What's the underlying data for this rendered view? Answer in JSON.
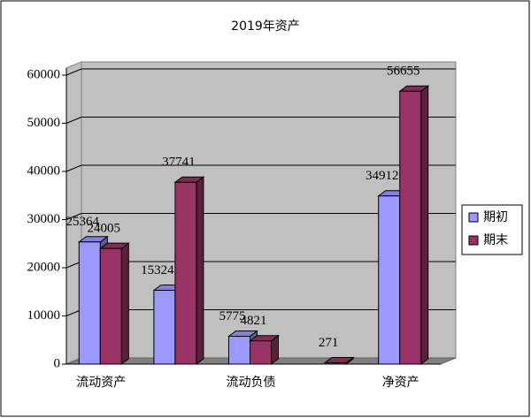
{
  "chart_data": {
    "type": "bar3d",
    "title": "2019年资产",
    "categories": [
      "流动资产",
      null,
      "流动负债",
      null,
      "净资产"
    ],
    "series": [
      {
        "name": "期初",
        "color": "#9999ff",
        "values": [
          25364,
          15324,
          5775,
          null,
          34912
        ]
      },
      {
        "name": "期末",
        "color": "#993366",
        "values": [
          24005,
          37741,
          4821,
          271,
          56655
        ]
      }
    ],
    "ylim": [
      0,
      60000
    ],
    "yticks": [
      0,
      10000,
      20000,
      30000,
      40000,
      50000,
      60000
    ],
    "grid": true
  }
}
